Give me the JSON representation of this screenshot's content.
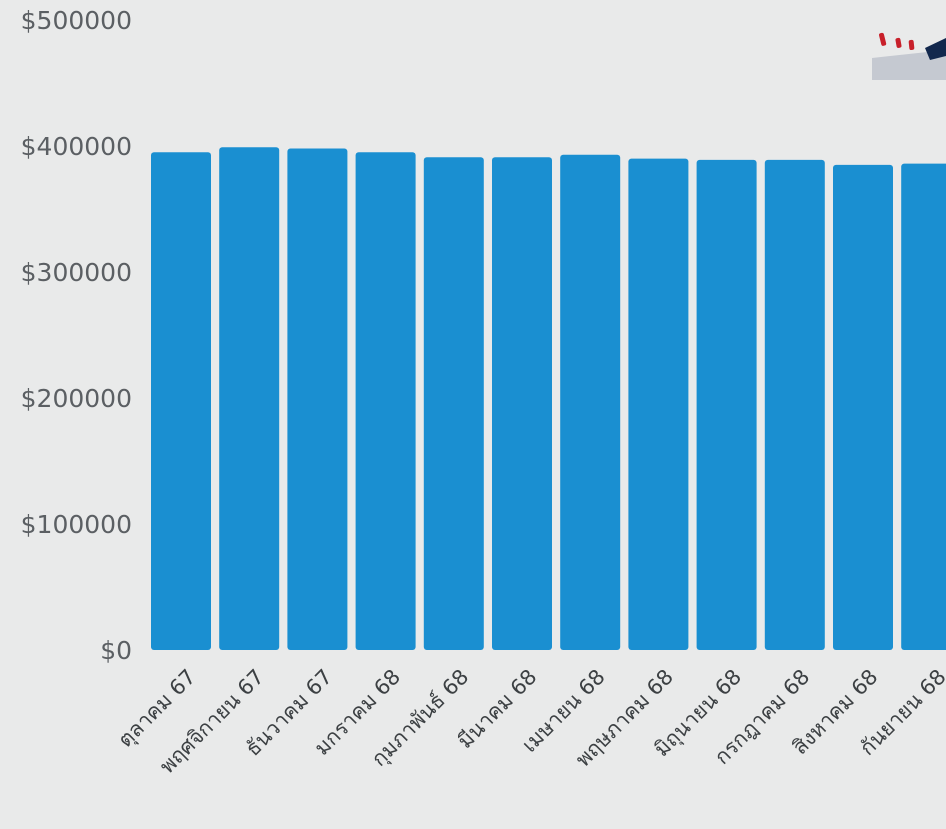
{
  "chart_data": {
    "type": "bar",
    "categories": [
      "ตุลาคม 67",
      "พฤศจิกายน 67",
      "ธันวาคม 67",
      "มกราคม 68",
      "กุมภาพันธ์ 68",
      "มีนาคม 68",
      "เมษายน 68",
      "พฤษภาคม 68",
      "มิถุนายน 68",
      "กรกฎาคม 68",
      "สิงหาคม 68",
      "กันยายน 68"
    ],
    "values": [
      395000,
      399000,
      398000,
      395000,
      391000,
      391000,
      393000,
      390000,
      389000,
      389000,
      385000,
      386000
    ],
    "ylim": [
      0,
      500000
    ],
    "yticks": [
      0,
      100000,
      200000,
      300000,
      400000,
      500000
    ],
    "ytick_labels": [
      "$0",
      "$100000",
      "$200000",
      "$300000",
      "$400000",
      "$500000"
    ],
    "grid": false,
    "bar_color": "#1a8fd1"
  }
}
